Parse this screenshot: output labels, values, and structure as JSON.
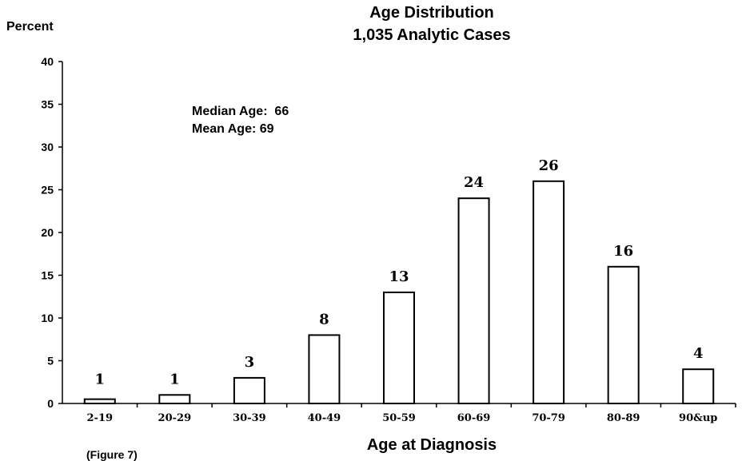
{
  "chart_data": {
    "type": "bar",
    "title": "Age Distribution",
    "subtitle": "1,035 Analytic Cases",
    "ylabel": "Percent",
    "xlabel": "Age at Diagnosis",
    "categories": [
      "2-19",
      "20-29",
      "30-39",
      "40-49",
      "50-59",
      "60-69",
      "70-79",
      "80-89",
      "90&up"
    ],
    "values": [
      0.5,
      1,
      3,
      8,
      13,
      24,
      26,
      16,
      4
    ],
    "data_labels": [
      "1",
      "1",
      "3",
      "8",
      "13",
      "24",
      "26",
      "16",
      "4"
    ],
    "ylim": [
      0,
      40
    ],
    "yticks": [
      "0",
      "5",
      "10",
      "15",
      "20",
      "25",
      "30",
      "35",
      "40"
    ],
    "annotations": [
      "Median Age:  66",
      "Mean Age: 69"
    ],
    "grid": false,
    "bar_fill": "#ffffff",
    "bar_stroke": "#000000"
  },
  "footnote": "(Figure 7)"
}
